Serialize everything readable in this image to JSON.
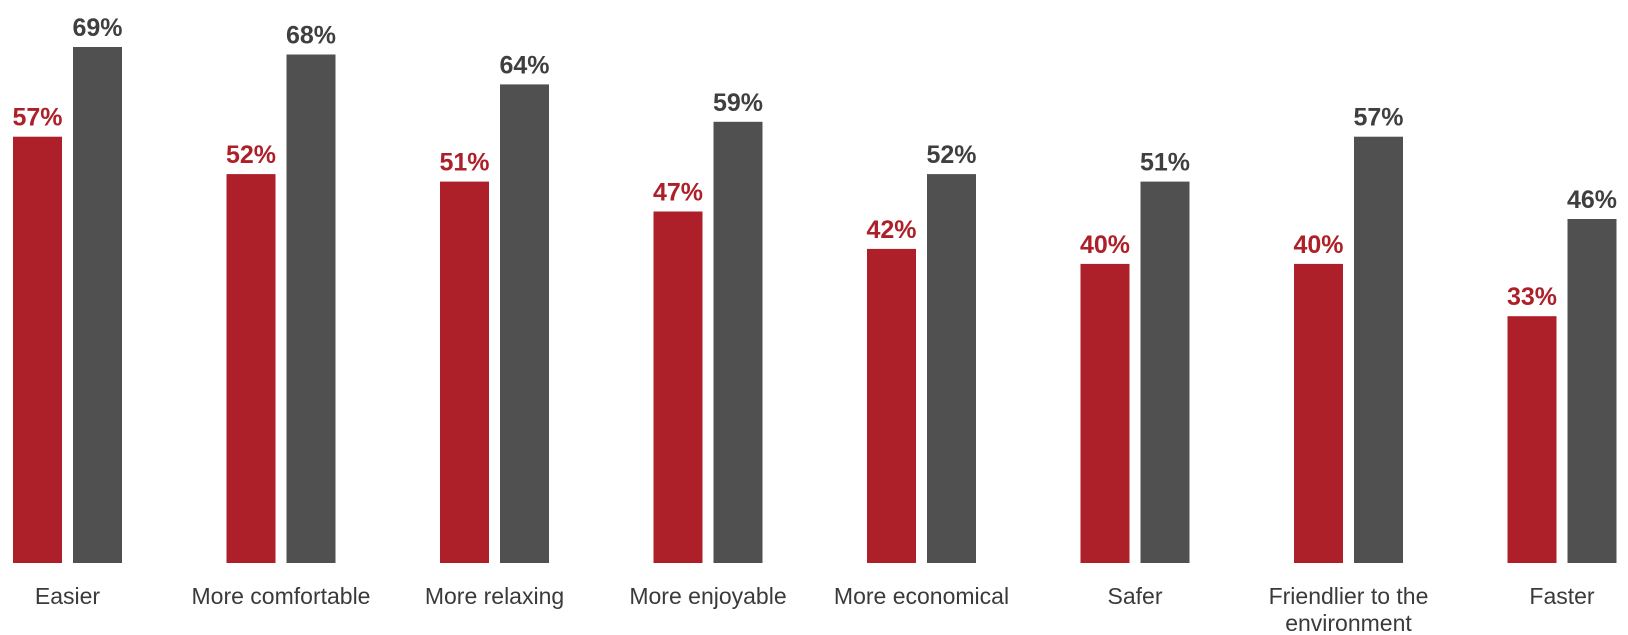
{
  "chart_data": {
    "type": "bar",
    "title": "",
    "xlabel": "",
    "ylabel": "",
    "ylim": [
      0,
      69
    ],
    "grid": false,
    "legend": "none",
    "value_suffix": "%",
    "categories": [
      [
        "Easier"
      ],
      [
        "More comfortable"
      ],
      [
        "More relaxing"
      ],
      [
        "More enjoyable"
      ],
      [
        "More economical"
      ],
      [
        "Safer"
      ],
      [
        "Friendlier to the",
        "environment"
      ],
      [
        "Faster"
      ]
    ],
    "series": [
      {
        "color": "#AE2029",
        "label_color": "#AE2029",
        "values": [
          57,
          52,
          51,
          47,
          42,
          40,
          40,
          33
        ]
      },
      {
        "color": "#505050",
        "label_color": "#3f3f3f",
        "values": [
          69,
          68,
          64,
          59,
          52,
          51,
          57,
          46
        ]
      }
    ]
  }
}
